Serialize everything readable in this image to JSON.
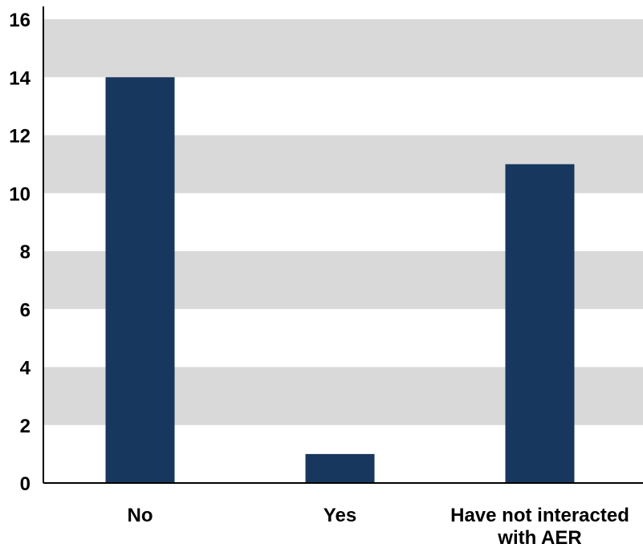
{
  "chart_data": {
    "type": "bar",
    "title": "",
    "xlabel": "",
    "ylabel": "",
    "categories": [
      [
        "No"
      ],
      [
        "Yes"
      ],
      [
        "Have not interacted",
        "with AER"
      ]
    ],
    "values": [
      14,
      1,
      11
    ],
    "ylim": [
      0,
      16
    ],
    "yticks": [
      "0",
      "2",
      "4",
      "6",
      "8",
      "10",
      "12",
      "14",
      "16"
    ],
    "grid": "alternating horizontal bands",
    "legend": "none",
    "colors": {
      "bar": "#17375e",
      "band": "#d9d9d9",
      "axis": "#000000"
    }
  }
}
